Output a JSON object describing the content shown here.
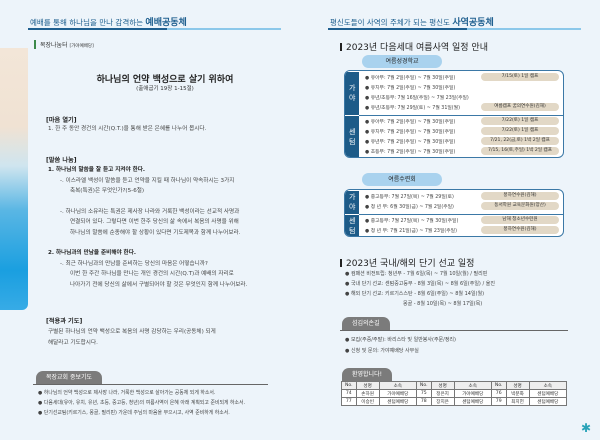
{
  "left": {
    "header_prefix": "예배를 통해 하나님을 만나 감격하는 ",
    "header_bold": "예배공동체",
    "tag": "목장나눔터",
    "tag_sub": "[가야예배당]",
    "title": "하나님의 언약 백성으로 살기 위하여",
    "subtitle": "(출애굽기 19장 1-15절)",
    "open_heading": "[마음 열기]",
    "open_lines": [
      "1. 한 주 동안 경건의 시간(Q.T.)을 통해 받은 은혜를 나누어 봅시다."
    ],
    "word_heading": "[말씀 나눔]",
    "word_lines": [
      {
        "t": "1. 하나님의 말씀을 잘 듣고 지켜야 한다.",
        "b": true
      },
      {
        "t": "-. 이스라엘 백성이 말씀을 듣고 언약을 지킬 때 하나님이 약속하시는 3가지",
        "i": 1
      },
      {
        "t": "축복(특권)은 무엇인가?(5-6절)",
        "i": 2
      },
      {
        "t": "-. 하나님의 소유라는 특권은 제사장 나라와 거룩한 백성이라는 선교적 사명과",
        "i": 1
      },
      {
        "t": "연결되어 있다. 그렇다면 이번 한주 당신의 삶 속에서 복음의 사명을 위해",
        "i": 2
      },
      {
        "t": "하나님의 말씀에 순종해야 할 상황이 있다면 기도제목과 함께 나누어보라.",
        "i": 2
      },
      {
        "t": "2. 하나님과의 만남을 준비해야 한다.",
        "b": true
      },
      {
        "t": "-. 최근 하나님과의 만남을 준비하는 당신의 마음은 어떻습니까?",
        "i": 1
      },
      {
        "t": "이번 한 주간 하나님을 만나는 개인 경건의 시간(Q.T)과 예배의 자리로",
        "i": 2
      },
      {
        "t": "나아가기 전에 당신의 삶에서 구별되어야 할 것은 무엇인지 함께 나누어보라.",
        "i": 2
      }
    ],
    "apply_heading": "[적용과 기도]",
    "apply_lines": [
      "구별된 하나님의 언약 백성으로 복음의 사명 감당하는 우리(공동체) 되게",
      "해달라고 기도합시다."
    ],
    "prayer_tab": "목장교회 중보기도",
    "prayer_items": [
      "하나님의 언약 백성으로 제사장 나라, 거룩한 백성으로 살아가는 공동체 되게 하소서.",
      "다음세대(유아, 유치, 유년, 초등, 중고등, 청년)의 여름사역이 은혜 아래 계획되고 준비되게 하소서.",
      "단기선교팀(키르기스, 몽골, 필리핀) 가운데 주님의 마음을 부으시고, 사역 준비하게 하소서."
    ]
  },
  "right": {
    "header_prefix": "평신도들이 사역의 주체가 되는 평신도 ",
    "header_bold": "사역공동체",
    "summer_title": "2023년 다음세대 여름사역 일정 안내",
    "vbs_pill": "여름성경학교",
    "vbs_groups": [
      {
        "label": "가야",
        "rows": [
          {
            "t": "유아부: 7월 2일(주일) ~ 7월 30일(주일)",
            "tag": "7/15(토) 1일 캠프"
          },
          {
            "t": "유치부: 7월 2일(주일) ~ 7월 30일(주일)"
          },
          {
            "t": "유년/초등부: 7월 16일(주일) ~ 7월 23일(주일)"
          },
          {
            "t": "유년/초등부: 7월 29일(토) ~ 7월 31일(월)",
            "tag": "여름캠프 꿈의연수원(김해)"
          }
        ]
      },
      {
        "label": "센텀",
        "rows": [
          {
            "t": "유아부: 7월 2일(주일) ~ 7월 30일(주일)",
            "tag": "7/22(토) 1일 캠프"
          },
          {
            "t": "유치부: 7월 2일(주일) ~ 7월 30일(주일)",
            "tag": "7/22(토) 1일 캠프"
          },
          {
            "t": "유년부: 7월 2일(주일) ~ 7월 30일(주일)",
            "tag": "7/21, 22(금,토) 1박 2일 캠프"
          },
          {
            "t": "초등부: 7월 2일(주일) ~ 7월 30일(주일)",
            "tag": "7/15, 16(토,주일) 1박 2일 캠프"
          }
        ]
      }
    ],
    "retreat_pill": "여름수련회",
    "retreat_groups": [
      {
        "label": "가야",
        "rows": [
          {
            "t": "중고등부: 7월 27일(목) ~ 7월 29일(토)",
            "tag": "풍하연수원(김해)"
          },
          {
            "t": "청 년 부: 6월 30일(금) ~ 7월 2일(주일)",
            "tag": "동서학원 교육문화원(양산)"
          }
        ]
      },
      {
        "label": "센텀",
        "rows": [
          {
            "t": "중고등부: 7월 27일(목) ~ 7월 30일(주일)",
            "tag": "남해 청소년수련원"
          },
          {
            "t": "청 년 부: 7월 21일(금) ~ 7월 23일(주일)",
            "tag": "풍하연수원(김해)"
          }
        ]
      }
    ],
    "mission_title": "2023년 국내/해외 단기 선교 일정",
    "mission_lines": [
      {
        "t": "컴패션 비전트립: 청년부 - 7월 6일(목) ~ 7월 10일(월) / 필리핀",
        "b": true
      },
      {
        "t": "국내 단기 선교: 센텀중고등부 - 8월 3일(목) ~ 8월 6일(주일) / 울진",
        "b": true
      },
      {
        "t": "해외 단기 선교: 키르기스스탄 - 8월 6일(주일) ~ 8월 14일(월)",
        "b": true
      },
      {
        "t": "몽골 - 8월 10일(목) ~ 8월 17일(목)",
        "b": false
      }
    ],
    "service_tab": "섬김의손길",
    "service_lines": [
      "모집(주중/주말): 바리스타 및 일반봉사(주문/정리)",
      "신청 및 문의: 가야예배당 사무실"
    ],
    "welcome_tab": "환영합니다!",
    "welcome_headers": [
      "No.",
      "성명",
      "소속",
      "No.",
      "성명",
      "소속",
      "No.",
      "성명",
      "소속"
    ],
    "welcome_rows": [
      [
        "74",
        "손하원",
        "가야예배당",
        "75",
        "정은지",
        "가야예배당",
        "76",
        "박분화",
        "센텀예배당"
      ],
      [
        "77",
        "이승빈",
        "센텀예배당",
        "78",
        "장지은",
        "센텀예배당",
        "79",
        "최치헌",
        "센텀예배당"
      ]
    ]
  },
  "colors": {
    "accent": "#1f5f8f",
    "tag_bg": "#e2d8c6",
    "pill": "#a9d2ee",
    "background": "#edf4fa"
  },
  "icons": {
    "logo": "leaf-logo-icon"
  }
}
